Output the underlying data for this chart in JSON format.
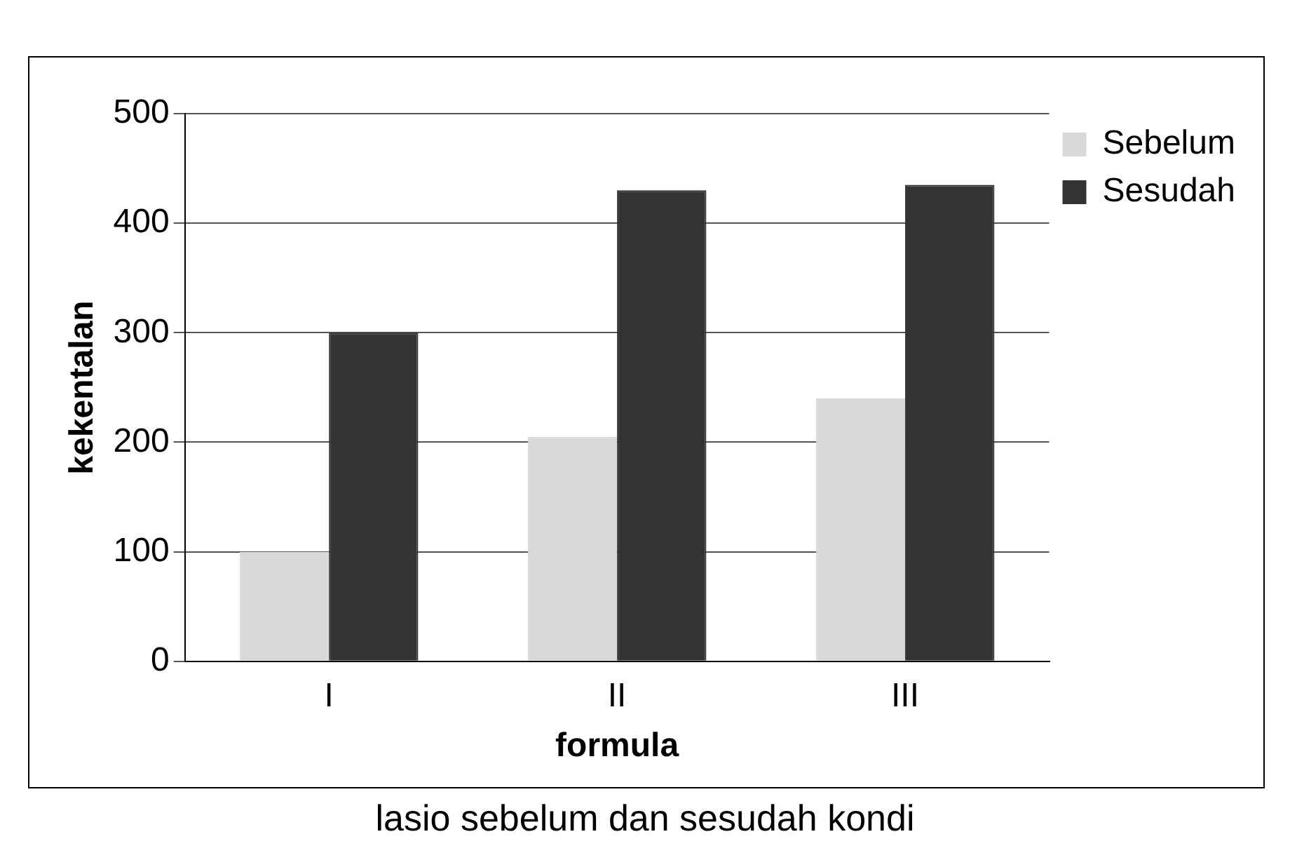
{
  "chart_data": {
    "type": "bar",
    "xlabel": "formula",
    "ylabel": "kekentalan",
    "categories": [
      "I",
      "II",
      "III"
    ],
    "series": [
      {
        "name": "Sebelum",
        "color": "#d9d9d9",
        "values": [
          100,
          205,
          240
        ]
      },
      {
        "name": "Sesudah",
        "color": "#333333",
        "values": [
          300,
          430,
          435
        ]
      }
    ],
    "ylim": [
      0,
      500
    ],
    "yticks": [
      0,
      100,
      200,
      300,
      400,
      500
    ],
    "grid": "y",
    "legend": "right",
    "annotations": [
      "lasio sebelum dan sesudah kondi"
    ]
  }
}
